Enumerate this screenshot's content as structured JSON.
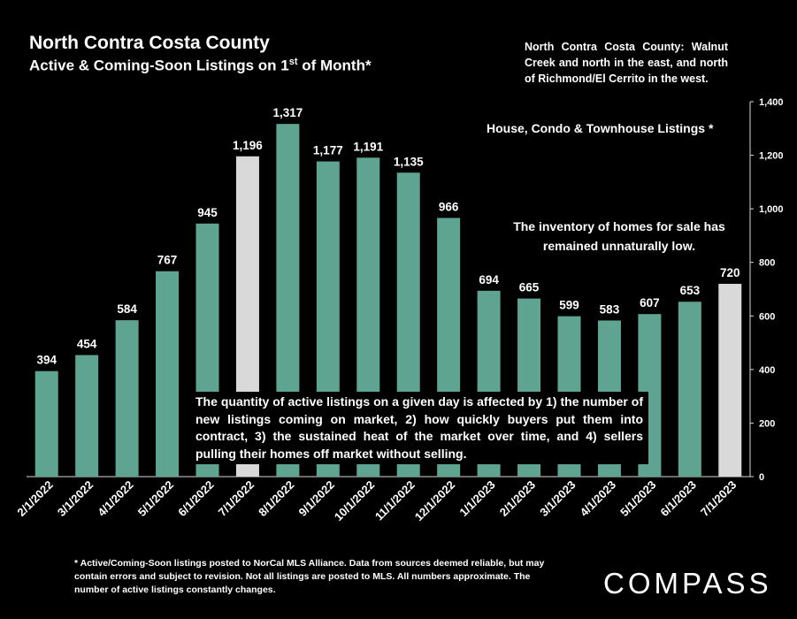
{
  "title": "North Contra Costa County",
  "subtitle": "Active & Coming-Soon Listings on 1",
  "subtitle_sup": "st",
  "subtitle_end": " of Month*",
  "region_note": "North Contra Costa County: Walnut Creek and north in the east, and north of Richmond/El Cerrito in the west.",
  "legend_note": "House, Condo & Townhouse Listings *",
  "inventory_note": "The inventory of homes for sale has remained unnaturally low.",
  "quantity_note": "The quantity of active listings on a given day is affected by 1) the number of new listings coming on market, 2) how quickly buyers put them into contract, 3) the sustained heat of the market over time, and 4) sellers pulling their homes off market without selling.",
  "footnote": "* Active/Coming-Soon listings posted to NorCal MLS Alliance. Data from sources deemed reliable, but may contain errors and subject to revision. Not all listings are posted to MLS. All numbers approximate. The number of active listings constantly changes.",
  "logo": "COMPASS",
  "colors": {
    "bar": "#5fa391",
    "highlight_bar": "#d9d9d9",
    "background": "#000000",
    "text": "#ffffff"
  },
  "chart_data": {
    "type": "bar",
    "categories": [
      "2/1/2022",
      "3/1/2022",
      "4/1/2022",
      "5/1/2022",
      "6/1/2022",
      "7/1/2022",
      "8/1/2022",
      "9/1/2022",
      "10/1/2022",
      "11/1/2022",
      "12/1/2022",
      "1/1/2023",
      "2/1/2023",
      "3/1/2023",
      "4/1/2023",
      "5/1/2023",
      "6/1/2023",
      "7/1/2023"
    ],
    "values": [
      394,
      454,
      584,
      767,
      945,
      1196,
      1317,
      1177,
      1191,
      1135,
      966,
      694,
      665,
      599,
      583,
      607,
      653,
      720
    ],
    "value_labels": [
      "394",
      "454",
      "584",
      "767",
      "945",
      "1,196",
      "1,317",
      "1,177",
      "1,191",
      "1,135",
      "966",
      "694",
      "665",
      "599",
      "583",
      "607",
      "653",
      "720"
    ],
    "highlighted_categories": [
      "7/1/2022",
      "7/1/2023"
    ],
    "ylim": [
      0,
      1400
    ],
    "yticks": [
      0,
      200,
      400,
      600,
      800,
      1000,
      1200,
      1400
    ],
    "ytick_labels": [
      "0",
      "200",
      "400",
      "600",
      "800",
      "1,000",
      "1,200",
      "1,400"
    ],
    "y_axis_side": "right",
    "grid": false
  }
}
